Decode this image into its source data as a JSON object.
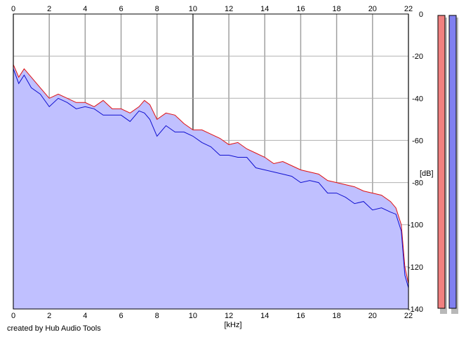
{
  "credit": "created by Hub Audio Tools",
  "chart_data": {
    "type": "area",
    "title": "",
    "xlabel": "[kHz]",
    "ylabel": "[dB]",
    "xlim": [
      0,
      22
    ],
    "ylim": [
      -140,
      0
    ],
    "x_ticks": [
      "0",
      "2",
      "4",
      "6",
      "8",
      "10",
      "12",
      "14",
      "16",
      "18",
      "20",
      "22"
    ],
    "y_ticks": [
      "0",
      "-20",
      "-40",
      "-60",
      "-80",
      "-100",
      "-120",
      "-140"
    ],
    "grid": true,
    "legend": "none",
    "x": [
      0,
      0.3,
      0.6,
      1,
      1.5,
      2,
      2.5,
      3,
      3.5,
      4,
      4.5,
      5,
      5.5,
      6,
      6.5,
      7,
      7.3,
      7.6,
      8,
      8.5,
      9,
      9.5,
      10,
      10.5,
      11,
      11.5,
      12,
      12.5,
      13,
      13.5,
      14,
      14.5,
      15,
      15.5,
      16,
      16.5,
      17,
      17.5,
      18,
      18.5,
      19,
      19.5,
      20,
      20.5,
      21,
      21.3,
      21.6,
      21.8,
      22
    ],
    "series": [
      {
        "color": "#e01010",
        "values": [
          -24,
          -30,
          -26,
          -30,
          -35,
          -40,
          -38,
          -40,
          -42,
          -42,
          -44,
          -41,
          -45,
          -45,
          -47,
          -44,
          -41,
          -43,
          -50,
          -47,
          -48,
          -52,
          -55,
          -55,
          -57,
          -59,
          -62,
          -61,
          -64,
          -66,
          -68,
          -71,
          -70,
          -72,
          -74,
          -75,
          -76,
          -79,
          -80,
          -81,
          -82,
          -84,
          -85,
          -86,
          -89,
          -92,
          -100,
          -120,
          -128
        ]
      },
      {
        "color": "#1010d0",
        "values": [
          -26,
          -33,
          -29,
          -35,
          -38,
          -44,
          -40,
          -42,
          -45,
          -44,
          -45,
          -48,
          -48,
          -48,
          -51,
          -46,
          -47,
          -50,
          -58,
          -53,
          -56,
          -56,
          -58,
          -61,
          -63,
          -67,
          -67,
          -68,
          -68,
          -73,
          -74,
          -75,
          -76,
          -77,
          -80,
          -79,
          -80,
          -85,
          -85,
          -87,
          -90,
          -89,
          -93,
          -92,
          -94,
          -95,
          -103,
          -124,
          -130
        ]
      }
    ],
    "fill_color": "#c0c0ff",
    "level_meters": [
      {
        "color": "#f08080"
      },
      {
        "color": "#8080f0"
      }
    ]
  }
}
